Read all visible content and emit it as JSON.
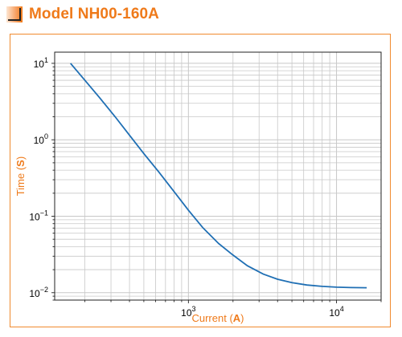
{
  "title": "Model NH00-160A",
  "colors": {
    "accent": "#ef7a1a",
    "frame": "#f08a2e",
    "series": "#1f6fb4",
    "grid": "#c8c8c8",
    "axis": "#222222"
  },
  "icons": {
    "title": "orange-gradient-square-icon"
  },
  "chart_data": {
    "type": "line",
    "title": "",
    "xlabel_prefix": "Current (",
    "xlabel_unit": "A",
    "xlabel_suffix": ")",
    "ylabel_prefix": "Time (",
    "ylabel_unit": "S",
    "ylabel_suffix": ")",
    "xscale": "log",
    "yscale": "log",
    "xlim": [
      125,
      20000
    ],
    "ylim": [
      0.008,
      14
    ],
    "grid": true,
    "x_tick_labels": [
      {
        "base": "10",
        "exp": "3",
        "value": 1000
      },
      {
        "base": "10",
        "exp": "4",
        "value": 10000
      }
    ],
    "y_tick_labels": [
      {
        "base": "10",
        "exp": "1",
        "value": 10
      },
      {
        "base": "10",
        "exp": "0",
        "value": 1
      },
      {
        "base": "10",
        "exp": "−1",
        "value": 0.1
      },
      {
        "base": "10",
        "exp": "−2",
        "value": 0.01
      }
    ],
    "series": [
      {
        "x": [
          160,
          200,
          250,
          320,
          400,
          500,
          630,
          800,
          1000,
          1250,
          1600,
          2000,
          2500,
          3200,
          4000,
          5000,
          6300,
          8000,
          10000,
          12500,
          16000
        ],
        "y": [
          10.0,
          6.0,
          3.6,
          2.0,
          1.15,
          0.66,
          0.38,
          0.21,
          0.12,
          0.071,
          0.044,
          0.031,
          0.0225,
          0.0175,
          0.015,
          0.0135,
          0.0126,
          0.0121,
          0.0118,
          0.01165,
          0.0116
        ]
      }
    ]
  }
}
